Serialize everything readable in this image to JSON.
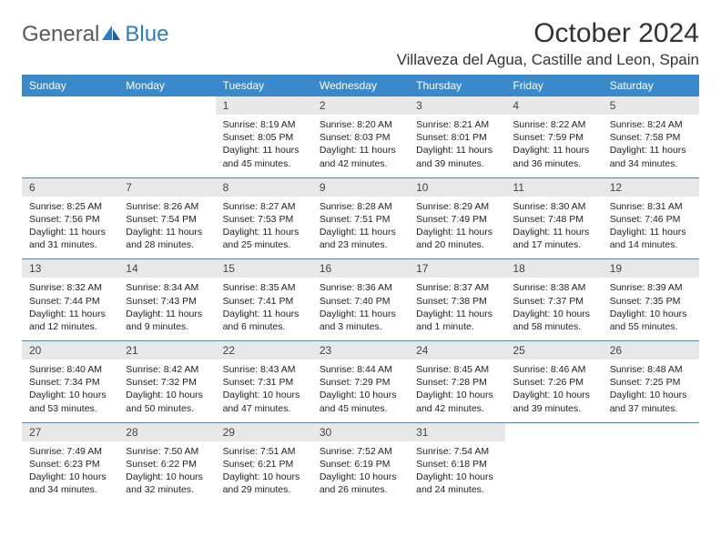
{
  "brand": {
    "part1": "General",
    "part2": "Blue"
  },
  "title": "October 2024",
  "location": "Villaveza del Agua, Castille and Leon, Spain",
  "colors": {
    "header_bg": "#3a8acb",
    "header_text": "#ffffff",
    "daynum_bg": "#e8e8e8",
    "rule": "#3a8acb",
    "brand_gray": "#5a5a5a",
    "brand_blue": "#2a7cc7"
  },
  "day_headers": [
    "Sunday",
    "Monday",
    "Tuesday",
    "Wednesday",
    "Thursday",
    "Friday",
    "Saturday"
  ],
  "weeks": [
    [
      {
        "n": "",
        "sr": "",
        "ss": "",
        "dl": ""
      },
      {
        "n": "",
        "sr": "",
        "ss": "",
        "dl": ""
      },
      {
        "n": "1",
        "sr": "8:19 AM",
        "ss": "8:05 PM",
        "dl": "11 hours and 45 minutes."
      },
      {
        "n": "2",
        "sr": "8:20 AM",
        "ss": "8:03 PM",
        "dl": "11 hours and 42 minutes."
      },
      {
        "n": "3",
        "sr": "8:21 AM",
        "ss": "8:01 PM",
        "dl": "11 hours and 39 minutes."
      },
      {
        "n": "4",
        "sr": "8:22 AM",
        "ss": "7:59 PM",
        "dl": "11 hours and 36 minutes."
      },
      {
        "n": "5",
        "sr": "8:24 AM",
        "ss": "7:58 PM",
        "dl": "11 hours and 34 minutes."
      }
    ],
    [
      {
        "n": "6",
        "sr": "8:25 AM",
        "ss": "7:56 PM",
        "dl": "11 hours and 31 minutes."
      },
      {
        "n": "7",
        "sr": "8:26 AM",
        "ss": "7:54 PM",
        "dl": "11 hours and 28 minutes."
      },
      {
        "n": "8",
        "sr": "8:27 AM",
        "ss": "7:53 PM",
        "dl": "11 hours and 25 minutes."
      },
      {
        "n": "9",
        "sr": "8:28 AM",
        "ss": "7:51 PM",
        "dl": "11 hours and 23 minutes."
      },
      {
        "n": "10",
        "sr": "8:29 AM",
        "ss": "7:49 PM",
        "dl": "11 hours and 20 minutes."
      },
      {
        "n": "11",
        "sr": "8:30 AM",
        "ss": "7:48 PM",
        "dl": "11 hours and 17 minutes."
      },
      {
        "n": "12",
        "sr": "8:31 AM",
        "ss": "7:46 PM",
        "dl": "11 hours and 14 minutes."
      }
    ],
    [
      {
        "n": "13",
        "sr": "8:32 AM",
        "ss": "7:44 PM",
        "dl": "11 hours and 12 minutes."
      },
      {
        "n": "14",
        "sr": "8:34 AM",
        "ss": "7:43 PM",
        "dl": "11 hours and 9 minutes."
      },
      {
        "n": "15",
        "sr": "8:35 AM",
        "ss": "7:41 PM",
        "dl": "11 hours and 6 minutes."
      },
      {
        "n": "16",
        "sr": "8:36 AM",
        "ss": "7:40 PM",
        "dl": "11 hours and 3 minutes."
      },
      {
        "n": "17",
        "sr": "8:37 AM",
        "ss": "7:38 PM",
        "dl": "11 hours and 1 minute."
      },
      {
        "n": "18",
        "sr": "8:38 AM",
        "ss": "7:37 PM",
        "dl": "10 hours and 58 minutes."
      },
      {
        "n": "19",
        "sr": "8:39 AM",
        "ss": "7:35 PM",
        "dl": "10 hours and 55 minutes."
      }
    ],
    [
      {
        "n": "20",
        "sr": "8:40 AM",
        "ss": "7:34 PM",
        "dl": "10 hours and 53 minutes."
      },
      {
        "n": "21",
        "sr": "8:42 AM",
        "ss": "7:32 PM",
        "dl": "10 hours and 50 minutes."
      },
      {
        "n": "22",
        "sr": "8:43 AM",
        "ss": "7:31 PM",
        "dl": "10 hours and 47 minutes."
      },
      {
        "n": "23",
        "sr": "8:44 AM",
        "ss": "7:29 PM",
        "dl": "10 hours and 45 minutes."
      },
      {
        "n": "24",
        "sr": "8:45 AM",
        "ss": "7:28 PM",
        "dl": "10 hours and 42 minutes."
      },
      {
        "n": "25",
        "sr": "8:46 AM",
        "ss": "7:26 PM",
        "dl": "10 hours and 39 minutes."
      },
      {
        "n": "26",
        "sr": "8:48 AM",
        "ss": "7:25 PM",
        "dl": "10 hours and 37 minutes."
      }
    ],
    [
      {
        "n": "27",
        "sr": "7:49 AM",
        "ss": "6:23 PM",
        "dl": "10 hours and 34 minutes."
      },
      {
        "n": "28",
        "sr": "7:50 AM",
        "ss": "6:22 PM",
        "dl": "10 hours and 32 minutes."
      },
      {
        "n": "29",
        "sr": "7:51 AM",
        "ss": "6:21 PM",
        "dl": "10 hours and 29 minutes."
      },
      {
        "n": "30",
        "sr": "7:52 AM",
        "ss": "6:19 PM",
        "dl": "10 hours and 26 minutes."
      },
      {
        "n": "31",
        "sr": "7:54 AM",
        "ss": "6:18 PM",
        "dl": "10 hours and 24 minutes."
      },
      {
        "n": "",
        "sr": "",
        "ss": "",
        "dl": ""
      },
      {
        "n": "",
        "sr": "",
        "ss": "",
        "dl": ""
      }
    ]
  ],
  "labels": {
    "sunrise": "Sunrise:",
    "sunset": "Sunset:",
    "daylight": "Daylight:"
  }
}
